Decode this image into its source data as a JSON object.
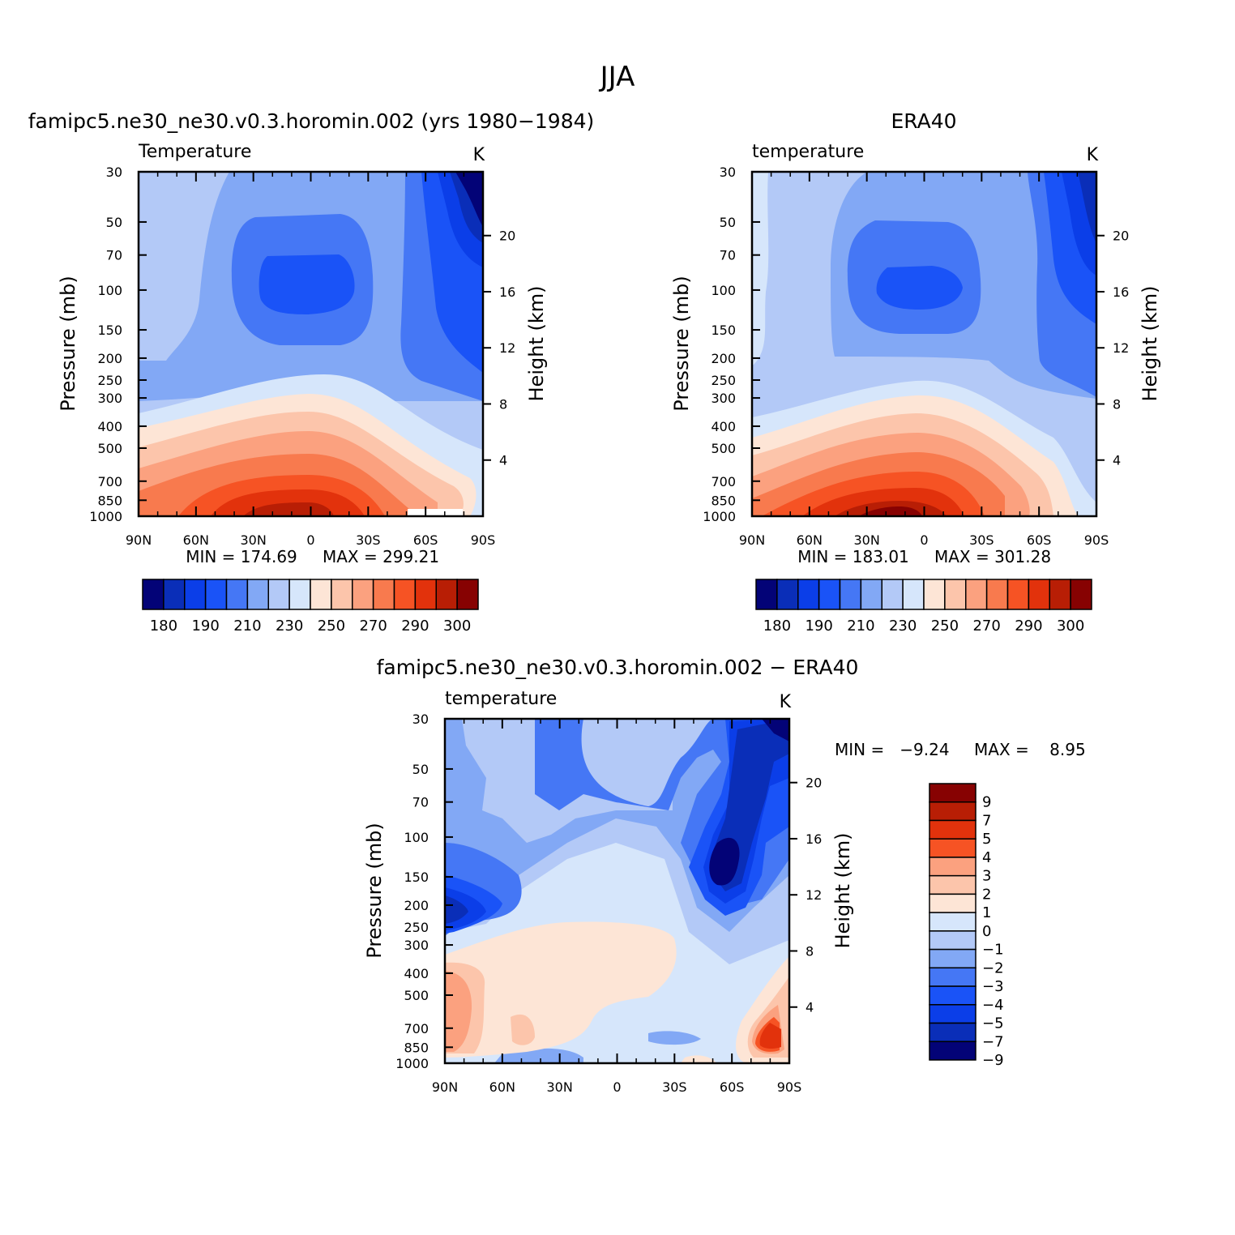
{
  "page": {
    "title": "JJA"
  },
  "palette": {
    "abs": [
      "#030377",
      "#0a2eb8",
      "#0b3ee8",
      "#1a53f7",
      "#4577f5",
      "#82a8f5",
      "#b3c9f7",
      "#d6e6fb",
      "#fde5d6",
      "#fcc5ab",
      "#fba17f",
      "#f87a4e",
      "#f65324",
      "#e2320c",
      "#b81e05",
      "#870202"
    ],
    "diff": [
      "#030377",
      "#0a2eb8",
      "#0b3ee8",
      "#1a53f7",
      "#4577f5",
      "#82a8f5",
      "#b3c9f7",
      "#d6e6fb",
      "#fde5d6",
      "#fcc5ab",
      "#fba17f",
      "#f65324",
      "#e2320c",
      "#b81e05",
      "#870202"
    ]
  },
  "chart_data": [
    {
      "type": "heatmap",
      "panel_title": "famipc5.ne30_ne30.v0.3.horomin.002 (yrs 1980−1984)",
      "left_string": "Temperature",
      "right_string": "K",
      "xlabel": "",
      "ylabel": "Pressure (mb)",
      "y2label": "Height (km)",
      "x_ticks": [
        "90N",
        "60N",
        "30N",
        "0",
        "30S",
        "60S",
        "90S"
      ],
      "y_ticks": [
        "30",
        "50",
        "70",
        "100",
        "150",
        "200",
        "250",
        "300",
        "400",
        "500",
        "700",
        "850",
        "1000"
      ],
      "y2_ticks": [
        "20",
        "16",
        "12",
        "8",
        "4"
      ],
      "ylim": [
        1000,
        30
      ],
      "y_scale": "log",
      "levels_labels": [
        "180",
        "190",
        "210",
        "230",
        "250",
        "270",
        "290",
        "300"
      ],
      "min_label": "MIN = 174.69",
      "max_label": "MAX = 299.21",
      "min": 174.69,
      "max": 299.21
    },
    {
      "type": "heatmap",
      "panel_title": "ERA40",
      "left_string": "temperature",
      "right_string": "K",
      "xlabel": "",
      "ylabel": "Pressure (mb)",
      "y2label": "Height (km)",
      "x_ticks": [
        "90N",
        "60N",
        "30N",
        "0",
        "30S",
        "60S",
        "90S"
      ],
      "y_ticks": [
        "30",
        "50",
        "70",
        "100",
        "150",
        "200",
        "250",
        "300",
        "400",
        "500",
        "700",
        "850",
        "1000"
      ],
      "y2_ticks": [
        "20",
        "16",
        "12",
        "8",
        "4"
      ],
      "ylim": [
        1000,
        30
      ],
      "y_scale": "log",
      "levels_labels": [
        "180",
        "190",
        "210",
        "230",
        "250",
        "270",
        "290",
        "300"
      ],
      "min_label": "MIN = 183.01",
      "max_label": "MAX = 301.28",
      "min": 183.01,
      "max": 301.28
    },
    {
      "type": "heatmap",
      "panel_title": "famipc5.ne30_ne30.v0.3.horomin.002 − ERA40",
      "left_string": "temperature",
      "right_string": "K",
      "xlabel": "",
      "ylabel": "Pressure (mb)",
      "y2label": "Height (km)",
      "x_ticks": [
        "90N",
        "60N",
        "30N",
        "0",
        "30S",
        "60S",
        "90S"
      ],
      "y_ticks": [
        "30",
        "50",
        "70",
        "100",
        "150",
        "200",
        "250",
        "300",
        "400",
        "500",
        "700",
        "850",
        "1000"
      ],
      "y2_ticks": [
        "20",
        "16",
        "12",
        "8",
        "4"
      ],
      "ylim": [
        1000,
        30
      ],
      "y_scale": "log",
      "levels_labels": [
        "9",
        "7",
        "5",
        "4",
        "3",
        "2",
        "1",
        "0",
        "−1",
        "−2",
        "−3",
        "−4",
        "−5",
        "−7",
        "−9"
      ],
      "min_label": "MIN =   −9.24",
      "max_label": "MAX =    8.95",
      "min": -9.24,
      "max": 8.95
    }
  ]
}
